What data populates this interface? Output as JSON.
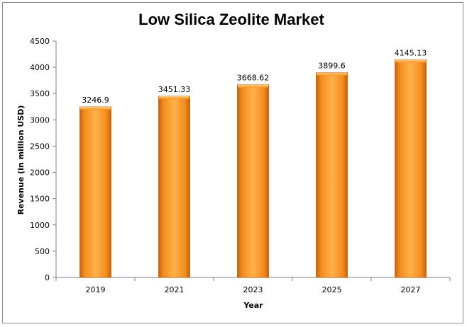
{
  "chart_data": {
    "type": "bar",
    "title": "Low Silica Zeolite Market",
    "xlabel": "Year",
    "ylabel": "Revenue (in million USD)",
    "categories": [
      "2019",
      "2021",
      "2023",
      "2025",
      "2027"
    ],
    "values": [
      3246.9,
      3451.33,
      3668.62,
      3899.6,
      4145.13
    ],
    "value_labels": [
      "3246.9",
      "3451.33",
      "3668.62",
      "3899.6",
      "4145.13"
    ],
    "ylim": [
      0,
      4500
    ],
    "yticks": [
      "0",
      "500",
      "1000",
      "1500",
      "2000",
      "2500",
      "3000",
      "3500",
      "4000",
      "4500"
    ],
    "grid": false,
    "legend": "none",
    "bar_color": "#f7931e"
  }
}
